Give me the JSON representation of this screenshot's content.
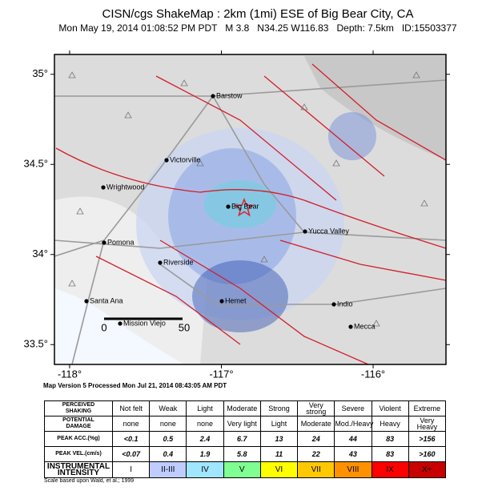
{
  "header": {
    "title": "CISN/cgs ShakeMap : 2km (1mi) ESE of Big Bear City, CA",
    "subtitle": "Mon May 19, 2014 01:08:52 PM PDT   M 3.8   N34.25 W116.83   Depth: 7.5km   ID:15503377"
  },
  "map": {
    "lat_lim": [
      33.39,
      35.11
    ],
    "lon_lim": [
      -118.1,
      -115.52
    ],
    "lat_ticks": [
      {
        "value": 35,
        "label": "35°"
      },
      {
        "value": 34.5,
        "label": "34.5°"
      },
      {
        "value": 34,
        "label": "34°"
      },
      {
        "value": 33.5,
        "label": "33.5°"
      }
    ],
    "lon_ticks": [
      {
        "value": -118,
        "label": "-118°"
      },
      {
        "value": -117,
        "label": "-117°"
      },
      {
        "value": -116,
        "label": "-116°"
      }
    ],
    "cities": [
      "Barstow",
      "Victorville",
      "Wrightwood",
      "Big Bear",
      "Yucca Valley",
      "Pomona",
      "Riverside",
      "Santa Ana",
      "Hemet",
      "Indio",
      "Mission Viejo",
      "Mecca"
    ],
    "scale_labels": [
      "0",
      "50"
    ]
  },
  "version": "Map Version 5 Processed Mon Jul 21, 2014 08:43:05 AM PDT",
  "table": {
    "rows": [
      [
        "PERCEIVED\nSHAKING",
        "Not felt",
        "Weak",
        "Light",
        "Moderate",
        "Strong",
        "Very strong",
        "Severe",
        "Violent",
        "Extreme"
      ],
      [
        "POTENTIAL\nDAMAGE",
        "none",
        "none",
        "none",
        "Very light",
        "Light",
        "Moderate",
        "Mod./Heavy",
        "Heavy",
        "Very Heavy"
      ],
      [
        "PEAK ACC.(%g)",
        "<0.1",
        "0.5",
        "2.4",
        "6.7",
        "13",
        "24",
        "44",
        "83",
        ">156"
      ],
      [
        "PEAK VEL.(cm/s)",
        "<0.07",
        "0.4",
        "1.9",
        "5.8",
        "11",
        "22",
        "43",
        "83",
        ">160"
      ],
      [
        "INSTRUMENTAL\nINTENSITY",
        "I",
        "II-III",
        "IV",
        "V",
        "VI",
        "VII",
        "VIII",
        "IX",
        "X+"
      ]
    ],
    "intensity_colors": [
      "#ffffff",
      "#bfccff",
      "#a0e6ff",
      "#80ff92",
      "#ffff00",
      "#ffc800",
      "#ff9100",
      "#ff0000",
      "#c80000"
    ]
  },
  "footnote": "Scale based upon Wald, et al.; 1999"
}
